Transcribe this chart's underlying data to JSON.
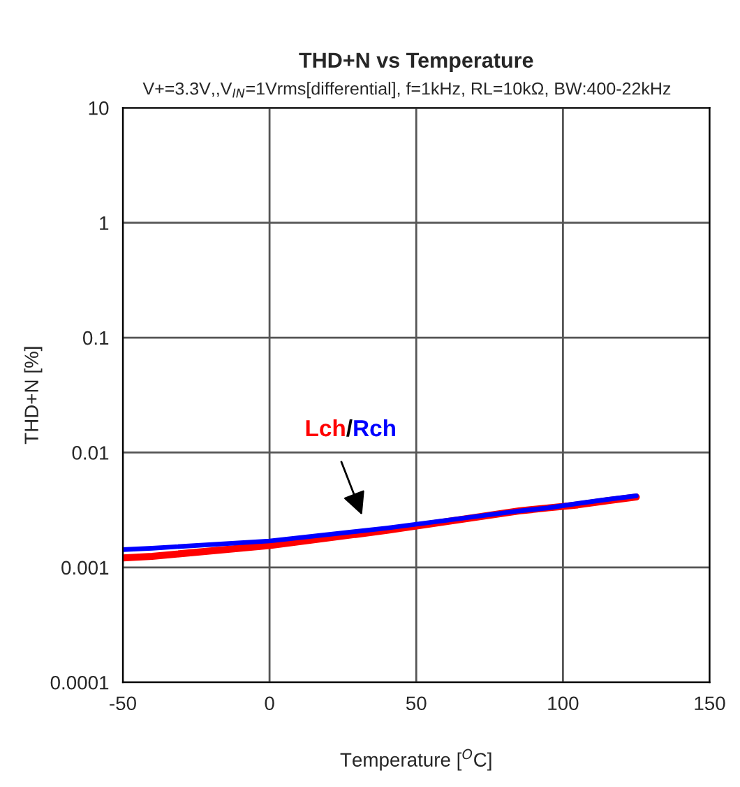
{
  "chart_data": {
    "type": "line",
    "title": "THD+N vs Temperature",
    "subtitle": "V+=3.3V,,V$_{IN}$=1Vrms[differential], f=1kHz, RL=10kΩ, BW:400-22kHz",
    "xlabel": "Temperature [$^{O}$C]",
    "ylabel": "THD+N [%]",
    "x": [
      -50,
      -40,
      0,
      40,
      85,
      95,
      105,
      115,
      125
    ],
    "series": [
      {
        "name": "Lch",
        "color": "#ff0000",
        "values": [
          0.00121,
          0.00125,
          0.00155,
          0.0021,
          0.0031,
          0.0033,
          0.0035,
          0.0038,
          0.0041
        ]
      },
      {
        "name": "Rch",
        "color": "#0000ff",
        "values": [
          0.00143,
          0.00147,
          0.0017,
          0.0022,
          0.0031,
          0.0033,
          0.0036,
          0.0039,
          0.0042
        ]
      }
    ],
    "xlim": [
      -50,
      150
    ],
    "xticks": [
      -50,
      0,
      50,
      100,
      150
    ],
    "ylim": [
      0.0001,
      10
    ],
    "yticks": [
      0.0001,
      0.001,
      0.01,
      0.1,
      1,
      10
    ],
    "log": true,
    "grid": true,
    "marker": "none",
    "line_style": "solid",
    "annotations": [
      "/"
    ]
  }
}
